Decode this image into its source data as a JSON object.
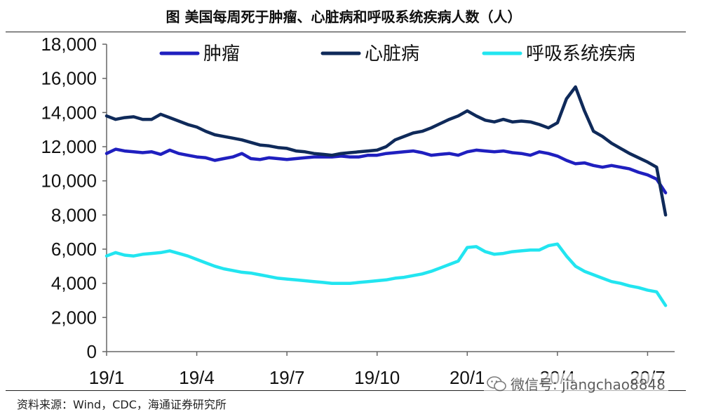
{
  "title": "图  美国每周死于肿瘤、心脏病和呼吸系统疾病人数（人）",
  "source": "资料来源：Wind，CDC，海通证券研究所",
  "watermark": "微信号: jiangchao8848",
  "chart_data": {
    "type": "line",
    "title": "图  美国每周死于肿瘤、心脏病和呼吸系统疾病人数（人）",
    "xlabel": "",
    "ylabel": "",
    "ylim": [
      0,
      18000
    ],
    "y_ticks": [
      "0",
      "2,000",
      "4,000",
      "6,000",
      "8,000",
      "10,000",
      "12,000",
      "14,000",
      "16,000",
      "18,000"
    ],
    "y_tick_values": [
      0,
      2000,
      4000,
      6000,
      8000,
      10000,
      12000,
      14000,
      16000,
      18000
    ],
    "x_ticks": [
      "19/1",
      "19/4",
      "19/7",
      "19/10",
      "20/1",
      "20/4",
      "20/7"
    ],
    "x_range_weeks": [
      0,
      63
    ],
    "x_tick_weeks": [
      0,
      10,
      20,
      30,
      40,
      50,
      60
    ],
    "legend_position": "top",
    "grid": false,
    "series": [
      {
        "name": "肿瘤",
        "color": "#1F1FBF",
        "points": [
          [
            0,
            11600
          ],
          [
            1,
            11850
          ],
          [
            2,
            11750
          ],
          [
            3,
            11700
          ],
          [
            4,
            11650
          ],
          [
            5,
            11700
          ],
          [
            6,
            11550
          ],
          [
            7,
            11800
          ],
          [
            8,
            11600
          ],
          [
            9,
            11500
          ],
          [
            10,
            11400
          ],
          [
            11,
            11350
          ],
          [
            12,
            11200
          ],
          [
            13,
            11300
          ],
          [
            14,
            11400
          ],
          [
            15,
            11600
          ],
          [
            16,
            11300
          ],
          [
            17,
            11250
          ],
          [
            18,
            11350
          ],
          [
            19,
            11300
          ],
          [
            20,
            11250
          ],
          [
            21,
            11300
          ],
          [
            22,
            11350
          ],
          [
            23,
            11400
          ],
          [
            24,
            11400
          ],
          [
            25,
            11400
          ],
          [
            26,
            11450
          ],
          [
            27,
            11400
          ],
          [
            28,
            11400
          ],
          [
            29,
            11500
          ],
          [
            30,
            11500
          ],
          [
            31,
            11600
          ],
          [
            32,
            11650
          ],
          [
            33,
            11700
          ],
          [
            34,
            11750
          ],
          [
            35,
            11650
          ],
          [
            36,
            11500
          ],
          [
            37,
            11550
          ],
          [
            38,
            11600
          ],
          [
            39,
            11500
          ],
          [
            40,
            11700
          ],
          [
            41,
            11800
          ],
          [
            42,
            11750
          ],
          [
            43,
            11700
          ],
          [
            44,
            11750
          ],
          [
            45,
            11650
          ],
          [
            46,
            11600
          ],
          [
            47,
            11500
          ],
          [
            48,
            11700
          ],
          [
            49,
            11600
          ],
          [
            50,
            11450
          ],
          [
            51,
            11200
          ],
          [
            52,
            11000
          ],
          [
            53,
            11050
          ],
          [
            54,
            10900
          ],
          [
            55,
            10800
          ],
          [
            56,
            10900
          ],
          [
            57,
            10800
          ],
          [
            58,
            10700
          ],
          [
            59,
            10500
          ],
          [
            60,
            10350
          ],
          [
            61,
            10100
          ],
          [
            62,
            9300
          ]
        ]
      },
      {
        "name": "心脏病",
        "color": "#0F2A5A",
        "points": [
          [
            0,
            13800
          ],
          [
            1,
            13600
          ],
          [
            2,
            13700
          ],
          [
            3,
            13750
          ],
          [
            4,
            13600
          ],
          [
            5,
            13600
          ],
          [
            6,
            13900
          ],
          [
            7,
            13700
          ],
          [
            8,
            13500
          ],
          [
            9,
            13300
          ],
          [
            10,
            13150
          ],
          [
            11,
            12900
          ],
          [
            12,
            12700
          ],
          [
            13,
            12600
          ],
          [
            14,
            12500
          ],
          [
            15,
            12400
          ],
          [
            16,
            12250
          ],
          [
            17,
            12100
          ],
          [
            18,
            12050
          ],
          [
            19,
            11950
          ],
          [
            20,
            11900
          ],
          [
            21,
            11750
          ],
          [
            22,
            11700
          ],
          [
            23,
            11600
          ],
          [
            24,
            11550
          ],
          [
            25,
            11500
          ],
          [
            26,
            11600
          ],
          [
            27,
            11650
          ],
          [
            28,
            11700
          ],
          [
            29,
            11750
          ],
          [
            30,
            11800
          ],
          [
            31,
            12000
          ],
          [
            32,
            12400
          ],
          [
            33,
            12600
          ],
          [
            34,
            12800
          ],
          [
            35,
            12900
          ],
          [
            36,
            13100
          ],
          [
            37,
            13350
          ],
          [
            38,
            13600
          ],
          [
            39,
            13800
          ],
          [
            40,
            14100
          ],
          [
            41,
            13800
          ],
          [
            42,
            13550
          ],
          [
            43,
            13450
          ],
          [
            44,
            13600
          ],
          [
            45,
            13450
          ],
          [
            46,
            13500
          ],
          [
            47,
            13450
          ],
          [
            48,
            13300
          ],
          [
            49,
            13100
          ],
          [
            50,
            13400
          ],
          [
            51,
            14800
          ],
          [
            52,
            15500
          ],
          [
            53,
            14100
          ],
          [
            54,
            12900
          ],
          [
            55,
            12600
          ],
          [
            56,
            12200
          ],
          [
            57,
            11900
          ],
          [
            58,
            11600
          ],
          [
            59,
            11350
          ],
          [
            60,
            11100
          ],
          [
            61,
            10800
          ],
          [
            62,
            8000
          ]
        ]
      },
      {
        "name": "呼吸系统疾病",
        "color": "#22E5F0",
        "points": [
          [
            0,
            5600
          ],
          [
            1,
            5800
          ],
          [
            2,
            5650
          ],
          [
            3,
            5600
          ],
          [
            4,
            5700
          ],
          [
            5,
            5750
          ],
          [
            6,
            5800
          ],
          [
            7,
            5900
          ],
          [
            8,
            5750
          ],
          [
            9,
            5600
          ],
          [
            10,
            5400
          ],
          [
            11,
            5200
          ],
          [
            12,
            5000
          ],
          [
            13,
            4850
          ],
          [
            14,
            4750
          ],
          [
            15,
            4650
          ],
          [
            16,
            4600
          ],
          [
            17,
            4500
          ],
          [
            18,
            4400
          ],
          [
            19,
            4300
          ],
          [
            20,
            4250
          ],
          [
            21,
            4200
          ],
          [
            22,
            4150
          ],
          [
            23,
            4100
          ],
          [
            24,
            4050
          ],
          [
            25,
            4000
          ],
          [
            26,
            4000
          ],
          [
            27,
            4000
          ],
          [
            28,
            4050
          ],
          [
            29,
            4100
          ],
          [
            30,
            4150
          ],
          [
            31,
            4200
          ],
          [
            32,
            4300
          ],
          [
            33,
            4350
          ],
          [
            34,
            4450
          ],
          [
            35,
            4550
          ],
          [
            36,
            4700
          ],
          [
            37,
            4900
          ],
          [
            38,
            5100
          ],
          [
            39,
            5300
          ],
          [
            40,
            6100
          ],
          [
            41,
            6150
          ],
          [
            42,
            5850
          ],
          [
            43,
            5700
          ],
          [
            44,
            5750
          ],
          [
            45,
            5850
          ],
          [
            46,
            5900
          ],
          [
            47,
            5950
          ],
          [
            48,
            5950
          ],
          [
            49,
            6200
          ],
          [
            50,
            6300
          ],
          [
            51,
            5600
          ],
          [
            52,
            5000
          ],
          [
            53,
            4700
          ],
          [
            54,
            4500
          ],
          [
            55,
            4300
          ],
          [
            56,
            4100
          ],
          [
            57,
            4000
          ],
          [
            58,
            3850
          ],
          [
            59,
            3750
          ],
          [
            60,
            3600
          ],
          [
            61,
            3500
          ],
          [
            62,
            2700
          ]
        ]
      }
    ]
  }
}
